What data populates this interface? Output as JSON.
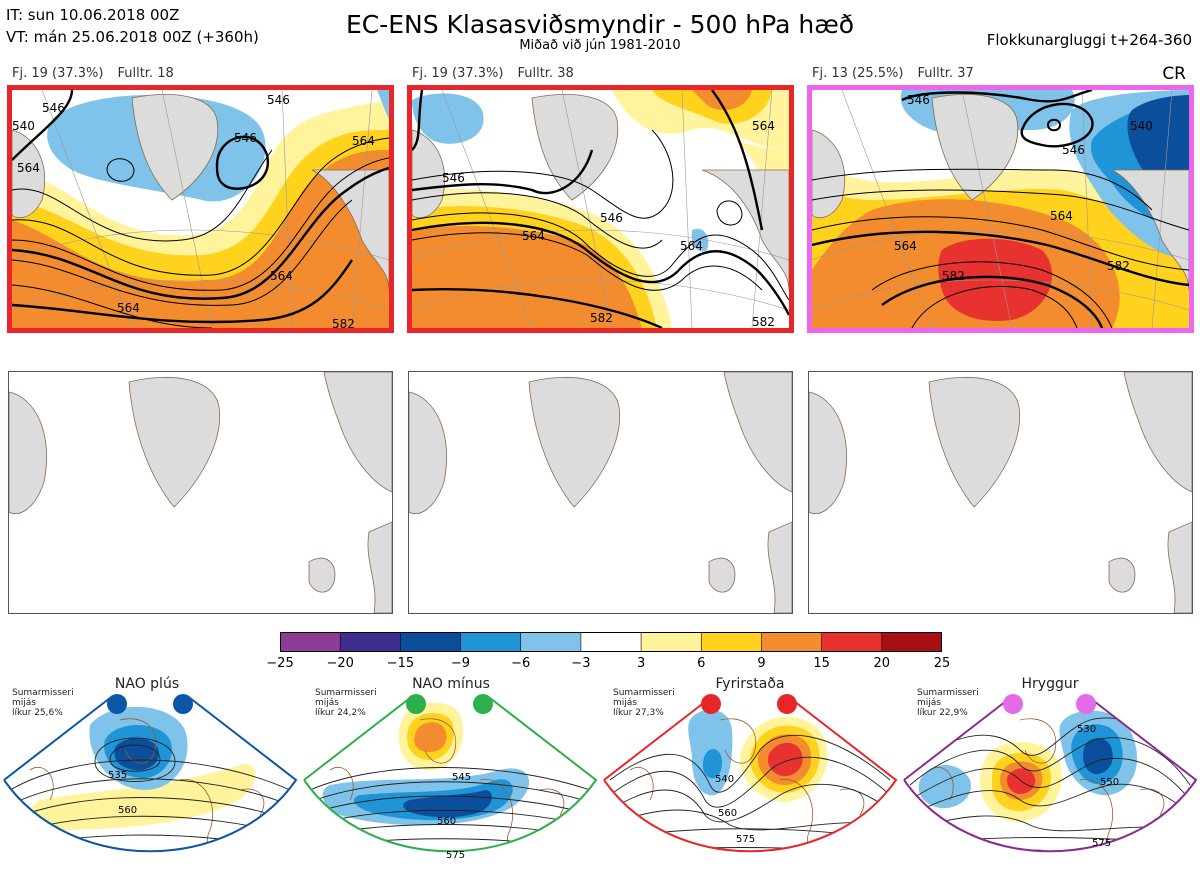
{
  "header": {
    "it": "IT: sun 10.06.2018 00Z",
    "vt": "VT: mán 25.06.2018 00Z  (+360h)",
    "title": "EC-ENS Klasasviðsmyndir - 500 hPa hæð",
    "subtitle": "Miðað við jún 1981-2010",
    "window": "Flokkunargluggi t+264-360",
    "cr": "CR"
  },
  "clusters": [
    {
      "fj": "Fj. 19 (37.3%)",
      "fulltr": "Fulltr. 18",
      "border": "#e8262a",
      "contours": [
        "546",
        "546",
        "546",
        "564",
        "564",
        "564",
        "564",
        "582",
        "540"
      ]
    },
    {
      "fj": "Fj. 19 (37.3%)",
      "fulltr": "Fulltr. 38",
      "border": "#e8262a",
      "contours": [
        "546",
        "546",
        "564",
        "564",
        "582",
        "564",
        "582"
      ]
    },
    {
      "fj": "Fj. 13 (25.5%)",
      "fulltr": "Fulltr. 37",
      "border": "#ee66ee",
      "contours": [
        "546",
        "546",
        "540",
        "564",
        "564",
        "582",
        "582"
      ]
    }
  ],
  "colorbar": {
    "ticks": [
      "−25",
      "−20",
      "−15",
      "−9",
      "−6",
      "−3",
      "3",
      "6",
      "9",
      "15",
      "20",
      "25"
    ],
    "colors": [
      "#8d3d96",
      "#3f2d8e",
      "#0b4f9c",
      "#1f95d8",
      "#7fc3ea",
      "#ffffff",
      "#fff39c",
      "#ffd21e",
      "#f28c2e",
      "#e8322f",
      "#a70f14"
    ]
  },
  "regimes": [
    {
      "name": "NAO plús",
      "info": [
        "Sumarmisseri",
        "mijás",
        "líkur 25,6%"
      ],
      "color": "#0b56a5",
      "contours": [
        "535",
        "560"
      ]
    },
    {
      "name": "NAO mínus",
      "info": [
        "Sumarmisseri",
        "mijás",
        "líkur 24,2%"
      ],
      "color": "#2db04b",
      "contours": [
        "545",
        "560",
        "575"
      ]
    },
    {
      "name": "Fyrirstaða",
      "info": [
        "Sumarmisseri",
        "mijás",
        "líkur 27,3%"
      ],
      "color": "#e8262a",
      "contours": [
        "540",
        "560",
        "575"
      ]
    },
    {
      "name": "Hryggur",
      "info": [
        "Sumarmisseri",
        "mijás",
        "líkur 22,9%"
      ],
      "color": "#e46be8",
      "contours": [
        "530",
        "550",
        "575"
      ]
    }
  ]
}
